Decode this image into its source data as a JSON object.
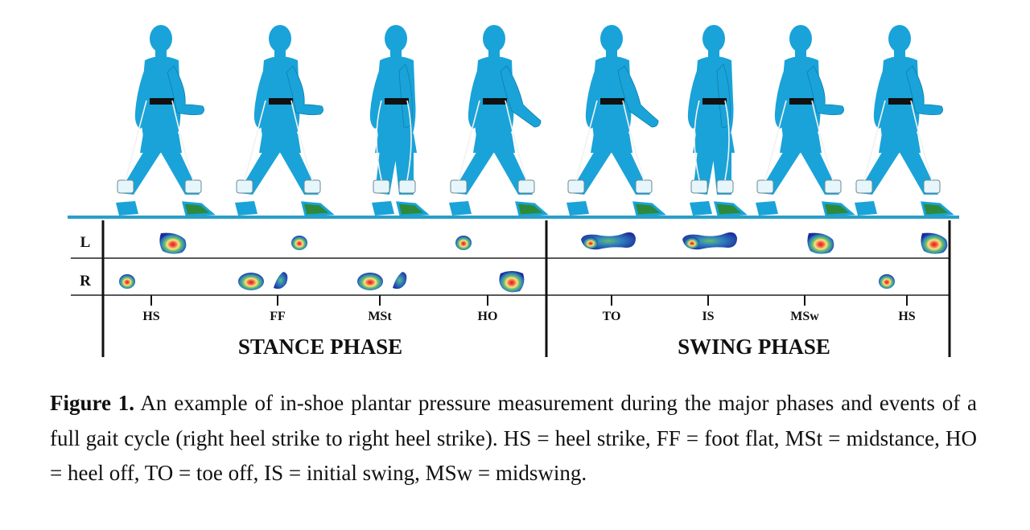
{
  "figure": {
    "rows": [
      "L",
      "R"
    ],
    "events": [
      "HS",
      "FF",
      "MSt",
      "HO",
      "TO",
      "IS",
      "MSw",
      "HS"
    ],
    "phases": [
      "STANCE PHASE",
      "SWING PHASE"
    ],
    "colors": {
      "figure_body": "#1aa3d8",
      "ground": "#2a9fc7",
      "belt": "#111111",
      "sensor_pad": "#e6f6fa",
      "foot_insole": "#2c8a3a"
    },
    "walkers": [
      {
        "event": "HS",
        "arm": "forward"
      },
      {
        "event": "FF",
        "arm": "forward"
      },
      {
        "event": "MSt",
        "arm": "down"
      },
      {
        "event": "HO",
        "arm": "back"
      },
      {
        "event": "TO",
        "arm": "back"
      },
      {
        "event": "IS",
        "arm": "down"
      },
      {
        "event": "MSw",
        "arm": "forward"
      },
      {
        "event": "HS",
        "arm": "forward"
      }
    ],
    "footprints": [
      {
        "row": "L",
        "event": "HS",
        "shape": "forefoot-heel"
      },
      {
        "row": "L",
        "event": "FF",
        "shape": "small-blob"
      },
      {
        "row": "L",
        "event": "HO",
        "shape": "small-blob"
      },
      {
        "row": "L",
        "event": "TO",
        "shape": "full-foot"
      },
      {
        "row": "L",
        "event": "IS",
        "shape": "full-foot"
      },
      {
        "row": "L",
        "event": "MSw",
        "shape": "forefoot-heel"
      },
      {
        "row": "L",
        "event": "HS",
        "shape": "forefoot-heel"
      },
      {
        "row": "R",
        "event": "HS",
        "shape": "small-blob"
      },
      {
        "row": "R",
        "event": "FF",
        "shape": "heel-plus-forefoot"
      },
      {
        "row": "R",
        "event": "MSt",
        "shape": "heel-plus-forefoot"
      },
      {
        "row": "R",
        "event": "HO",
        "shape": "forefoot"
      },
      {
        "row": "R",
        "event": "HS",
        "shape": "small-blob"
      }
    ]
  },
  "caption": {
    "label": "Figure 1.",
    "text": " An example of in-shoe plantar pressure measurement during the major phases and events of a full gait cycle (right heel strike to right heel strike). HS = heel strike, FF = foot flat, MSt = midstance, HO = heel off, TO = toe off, IS = initial swing, MSw = midswing."
  }
}
